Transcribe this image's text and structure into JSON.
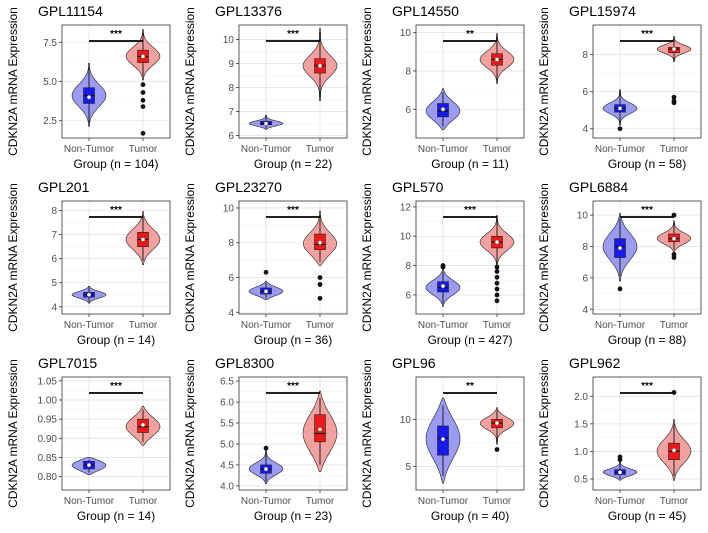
{
  "chart_data": [
    {
      "type": "violin",
      "title": "GPL11154",
      "xlabel": "Group (n = 104)",
      "ylabel": "CDKN2A mRNA Expression",
      "categories": [
        "Non-Tumor",
        "Tumor"
      ],
      "ylim": [
        1.4,
        8.6
      ],
      "yticks": [
        2.5,
        5.0,
        7.5
      ],
      "ytick_labels": [
        "2.5",
        "5.0",
        "7.5"
      ],
      "significance": "***",
      "series": [
        {
          "name": "Non-Tumor",
          "median": 4.1,
          "q1": 3.6,
          "q3": 4.6,
          "mean": 4.0,
          "min": 2.4,
          "max": 5.9,
          "outliers": [],
          "fill": "#6a6af0",
          "box": "#1a1ae6",
          "violin_color": "#9b9bf2"
        },
        {
          "name": "Tumor",
          "median": 6.6,
          "q1": 6.2,
          "q3": 7.0,
          "mean": 6.6,
          "min": 5.3,
          "max": 8.1,
          "outliers": [
            4.8,
            4.3,
            3.8,
            3.4,
            1.7
          ],
          "fill": "#f07a7a",
          "box": "#e81a1a",
          "violin_color": "#f2a1a1"
        }
      ]
    },
    {
      "type": "violin",
      "title": "GPL13376",
      "xlabel": "Group (n = 22)",
      "ylabel": "CDKN2A mRNA Expression",
      "categories": [
        "Non-Tumor",
        "Tumor"
      ],
      "ylim": [
        5.9,
        10.6
      ],
      "yticks": [
        6,
        7,
        8,
        9,
        10
      ],
      "ytick_labels": [
        "6",
        "7",
        "8",
        "9",
        "10"
      ],
      "significance": "***",
      "series": [
        {
          "name": "Non-Tumor",
          "median": 6.5,
          "q1": 6.45,
          "q3": 6.6,
          "mean": 6.5,
          "min": 6.3,
          "max": 6.8,
          "outliers": [],
          "fill": "#6a6af0",
          "box": "#1a1ae6",
          "violin_color": "#9b9bf2"
        },
        {
          "name": "Tumor",
          "median": 8.9,
          "q1": 8.6,
          "q3": 9.2,
          "mean": 8.9,
          "min": 7.6,
          "max": 10.3,
          "outliers": [],
          "fill": "#f07a7a",
          "box": "#e81a1a",
          "violin_color": "#f2a1a1"
        }
      ]
    },
    {
      "type": "violin",
      "title": "GPL14550",
      "xlabel": "Group (n = 11)",
      "ylabel": "CDKN2A mRNA Expression",
      "categories": [
        "Non-Tumor",
        "Tumor"
      ],
      "ylim": [
        4.5,
        10.4
      ],
      "yticks": [
        6,
        8,
        10
      ],
      "ytick_labels": [
        "6",
        "8",
        "10"
      ],
      "significance": "**",
      "series": [
        {
          "name": "Non-Tumor",
          "median": 5.9,
          "q1": 5.6,
          "q3": 6.3,
          "mean": 6.0,
          "min": 5.1,
          "max": 6.9,
          "outliers": [],
          "fill": "#6a6af0",
          "box": "#1a1ae6",
          "violin_color": "#9b9bf2"
        },
        {
          "name": "Tumor",
          "median": 8.6,
          "q1": 8.3,
          "q3": 8.9,
          "mean": 8.6,
          "min": 7.5,
          "max": 9.8,
          "outliers": [],
          "fill": "#f07a7a",
          "box": "#e81a1a",
          "violin_color": "#f2a1a1"
        }
      ]
    },
    {
      "type": "violin",
      "title": "GPL15974",
      "xlabel": "Group (n = 58)",
      "ylabel": "CDKN2A mRNA Expression",
      "categories": [
        "Non-Tumor",
        "Tumor"
      ],
      "ylim": [
        3.5,
        9.6
      ],
      "yticks": [
        4,
        6,
        8
      ],
      "ytick_labels": [
        "4",
        "6",
        "8"
      ],
      "significance": "***",
      "series": [
        {
          "name": "Non-Tumor",
          "median": 5.1,
          "q1": 4.9,
          "q3": 5.3,
          "mean": 5.1,
          "min": 4.3,
          "max": 6.0,
          "outliers": [
            4.0
          ],
          "fill": "#6a6af0",
          "box": "#1a1ae6",
          "violin_color": "#9b9bf2"
        },
        {
          "name": "Tumor",
          "median": 8.3,
          "q1": 8.1,
          "q3": 8.4,
          "mean": 8.3,
          "min": 7.7,
          "max": 8.9,
          "outliers": [
            5.7,
            5.5,
            5.4
          ],
          "fill": "#f07a7a",
          "box": "#e81a1a",
          "violin_color": "#f2a1a1"
        }
      ]
    },
    {
      "type": "violin",
      "title": "GPL201",
      "xlabel": "Group (n = 14)",
      "ylabel": "CDKN2A mRNA Expression",
      "categories": [
        "Non-Tumor",
        "Tumor"
      ],
      "ylim": [
        3.7,
        8.4
      ],
      "yticks": [
        4,
        5,
        6,
        7,
        8
      ],
      "ytick_labels": [
        "4",
        "5",
        "6",
        "7",
        "8"
      ],
      "significance": "***",
      "series": [
        {
          "name": "Non-Tumor",
          "median": 4.5,
          "q1": 4.4,
          "q3": 4.6,
          "mean": 4.5,
          "min": 4.2,
          "max": 4.8,
          "outliers": [],
          "fill": "#6a6af0",
          "box": "#1a1ae6",
          "violin_color": "#9b9bf2"
        },
        {
          "name": "Tumor",
          "median": 6.8,
          "q1": 6.5,
          "q3": 7.1,
          "mean": 6.8,
          "min": 5.9,
          "max": 7.8,
          "outliers": [],
          "fill": "#f07a7a",
          "box": "#e81a1a",
          "violin_color": "#f2a1a1"
        }
      ]
    },
    {
      "type": "violin",
      "title": "GPL23270",
      "xlabel": "Group (n = 36)",
      "ylabel": "CDKN2A mRNA Expression",
      "categories": [
        "Non-Tumor",
        "Tumor"
      ],
      "ylim": [
        3.9,
        10.4
      ],
      "yticks": [
        4,
        6,
        8,
        10
      ],
      "ytick_labels": [
        "4",
        "6",
        "8",
        "10"
      ],
      "significance": "***",
      "series": [
        {
          "name": "Non-Tumor",
          "median": 5.2,
          "q1": 5.05,
          "q3": 5.4,
          "mean": 5.2,
          "min": 4.8,
          "max": 5.7,
          "outliers": [
            6.3
          ],
          "fill": "#6a6af0",
          "box": "#1a1ae6",
          "violin_color": "#9b9bf2"
        },
        {
          "name": "Tumor",
          "median": 7.9,
          "q1": 7.6,
          "q3": 8.5,
          "mean": 8.0,
          "min": 6.9,
          "max": 9.6,
          "outliers": [
            6.0,
            5.6,
            4.8
          ],
          "fill": "#f07a7a",
          "box": "#e81a1a",
          "violin_color": "#f2a1a1"
        }
      ]
    },
    {
      "type": "violin",
      "title": "GPL570",
      "xlabel": "Group (n = 427)",
      "ylabel": "CDKN2A mRNA Expression",
      "categories": [
        "Non-Tumor",
        "Tumor"
      ],
      "ylim": [
        4.7,
        12.4
      ],
      "yticks": [
        6,
        8,
        10,
        12
      ],
      "ytick_labels": [
        "6",
        "8",
        "10",
        "12"
      ],
      "significance": "***",
      "series": [
        {
          "name": "Non-Tumor",
          "median": 6.5,
          "q1": 6.2,
          "q3": 6.9,
          "mean": 6.6,
          "min": 5.4,
          "max": 7.6,
          "outliers": [
            7.9,
            8.0
          ],
          "fill": "#6a6af0",
          "box": "#1a1ae6",
          "violin_color": "#9b9bf2"
        },
        {
          "name": "Tumor",
          "median": 9.6,
          "q1": 9.2,
          "q3": 10.0,
          "mean": 9.6,
          "min": 8.1,
          "max": 11.2,
          "outliers": [
            7.9,
            7.6,
            7.2,
            6.8,
            6.4,
            6.0,
            5.6
          ],
          "fill": "#f07a7a",
          "box": "#e81a1a",
          "violin_color": "#f2a1a1"
        }
      ]
    },
    {
      "type": "violin",
      "title": "GPL6884",
      "xlabel": "Group (n = 88)",
      "ylabel": "CDKN2A mRNA Expression",
      "categories": [
        "Non-Tumor",
        "Tumor"
      ],
      "ylim": [
        3.7,
        10.9
      ],
      "yticks": [
        4,
        6,
        8,
        10
      ],
      "ytick_labels": [
        "4",
        "6",
        "8",
        "10"
      ],
      "significance": "***",
      "series": [
        {
          "name": "Non-Tumor",
          "median": 8.0,
          "q1": 7.3,
          "q3": 8.5,
          "mean": 7.9,
          "min": 6.1,
          "max": 9.8,
          "outliers": [
            5.3
          ],
          "fill": "#6a6af0",
          "box": "#1a1ae6",
          "violin_color": "#9b9bf2"
        },
        {
          "name": "Tumor",
          "median": 8.5,
          "q1": 8.3,
          "q3": 8.8,
          "mean": 8.5,
          "min": 7.8,
          "max": 9.5,
          "outliers": [
            7.5,
            7.3,
            10.0
          ],
          "fill": "#f07a7a",
          "box": "#e81a1a",
          "violin_color": "#f2a1a1"
        }
      ]
    },
    {
      "type": "violin",
      "title": "GPL7015",
      "xlabel": "Group (n = 14)",
      "ylabel": "CDKN2A mRNA Expression",
      "categories": [
        "Non-Tumor",
        "Tumor"
      ],
      "ylim": [
        0.765,
        1.06
      ],
      "yticks": [
        0.8,
        0.85,
        0.9,
        0.95,
        1.0,
        1.05
      ],
      "ytick_labels": [
        "0.80",
        "0.85",
        "0.90",
        "0.95",
        "1.00",
        "1.05"
      ],
      "significance": "***",
      "series": [
        {
          "name": "Non-Tumor",
          "median": 0.83,
          "q1": 0.82,
          "q3": 0.84,
          "mean": 0.83,
          "min": 0.81,
          "max": 0.845,
          "outliers": [],
          "fill": "#6a6af0",
          "box": "#1a1ae6",
          "violin_color": "#9b9bf2"
        },
        {
          "name": "Tumor",
          "median": 0.93,
          "q1": 0.915,
          "q3": 0.95,
          "mean": 0.935,
          "min": 0.89,
          "max": 0.975,
          "outliers": [],
          "fill": "#f07a7a",
          "box": "#e81a1a",
          "violin_color": "#f2a1a1"
        }
      ]
    },
    {
      "type": "violin",
      "title": "GPL8300",
      "xlabel": "Group (n = 23)",
      "ylabel": "CDKN2A mRNA Expression",
      "categories": [
        "Non-Tumor",
        "Tumor"
      ],
      "ylim": [
        3.9,
        6.6
      ],
      "yticks": [
        4.0,
        4.5,
        5.0,
        5.5,
        6.0,
        6.5
      ],
      "ytick_labels": [
        "4.0",
        "4.5",
        "5.0",
        "5.5",
        "6.0",
        "6.5"
      ],
      "significance": "***",
      "series": [
        {
          "name": "Non-Tumor",
          "median": 4.4,
          "q1": 4.3,
          "q3": 4.5,
          "mean": 4.4,
          "min": 4.1,
          "max": 4.8,
          "outliers": [
            4.9
          ],
          "fill": "#6a6af0",
          "box": "#1a1ae6",
          "violin_color": "#9b9bf2"
        },
        {
          "name": "Tumor",
          "median": 5.25,
          "q1": 5.05,
          "q3": 5.7,
          "mean": 5.35,
          "min": 4.5,
          "max": 6.1,
          "outliers": [],
          "fill": "#f07a7a",
          "box": "#e81a1a",
          "violin_color": "#f2a1a1"
        }
      ]
    },
    {
      "type": "violin",
      "title": "GPL96",
      "xlabel": "Group (n = 40)",
      "ylabel": "CDKN2A mRNA Expression",
      "categories": [
        "Non-Tumor",
        "Tumor"
      ],
      "ylim": [
        2.5,
        14.5
      ],
      "yticks": [
        5,
        10
      ],
      "ytick_labels": [
        "5",
        "10"
      ],
      "significance": "**",
      "series": [
        {
          "name": "Non-Tumor",
          "median": 8.0,
          "q1": 6.2,
          "q3": 9.3,
          "mean": 7.9,
          "min": 4.0,
          "max": 11.5,
          "outliers": [],
          "fill": "#6a6af0",
          "box": "#1a1ae6",
          "violin_color": "#9b9bf2"
        },
        {
          "name": "Tumor",
          "median": 9.6,
          "q1": 9.1,
          "q3": 10.0,
          "mean": 9.6,
          "min": 7.6,
          "max": 11.0,
          "outliers": [
            6.8
          ],
          "fill": "#f07a7a",
          "box": "#e81a1a",
          "violin_color": "#f2a1a1"
        }
      ]
    },
    {
      "type": "violin",
      "title": "GPL962",
      "xlabel": "Group (n = 45)",
      "ylabel": "CDKN2A mRNA Expression",
      "categories": [
        "Non-Tumor",
        "Tumor"
      ],
      "ylim": [
        0.3,
        2.35
      ],
      "yticks": [
        0.5,
        1.0,
        1.5,
        2.0
      ],
      "ytick_labels": [
        "0.5",
        "1.0",
        "1.5",
        "2.0"
      ],
      "significance": "***",
      "series": [
        {
          "name": "Non-Tumor",
          "median": 0.62,
          "q1": 0.58,
          "q3": 0.67,
          "mean": 0.62,
          "min": 0.5,
          "max": 0.78,
          "outliers": [
            0.85,
            0.9
          ],
          "fill": "#6a6af0",
          "box": "#1a1ae6",
          "violin_color": "#9b9bf2"
        },
        {
          "name": "Tumor",
          "median": 1.0,
          "q1": 0.85,
          "q3": 1.15,
          "mean": 1.02,
          "min": 0.55,
          "max": 1.5,
          "outliers": [
            2.07
          ],
          "fill": "#f07a7a",
          "box": "#e81a1a",
          "violin_color": "#f2a1a1"
        }
      ]
    }
  ]
}
